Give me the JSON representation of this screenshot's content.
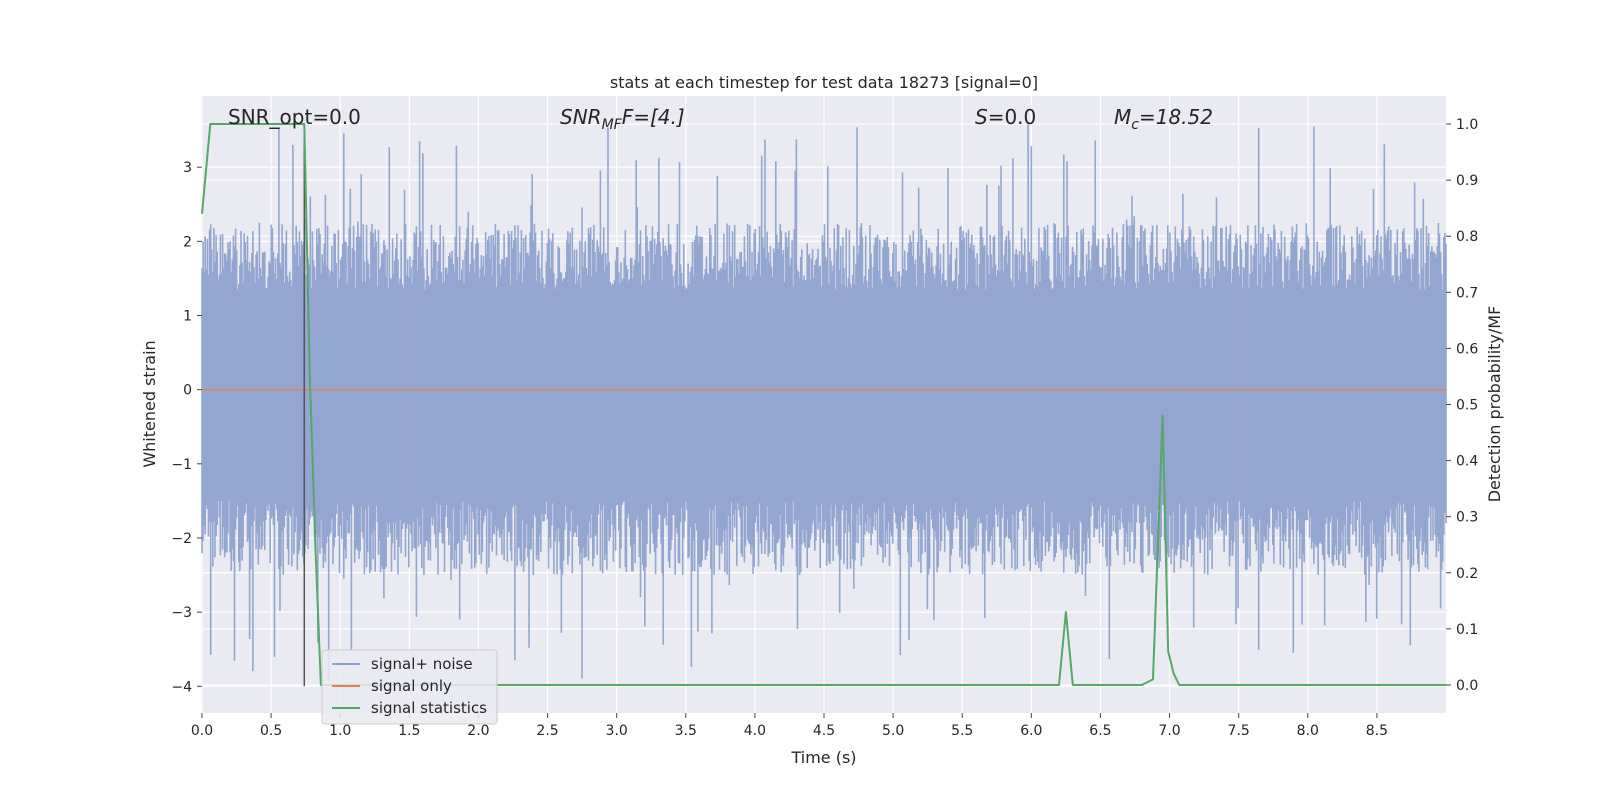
{
  "chart_data": {
    "type": "line",
    "title": "stats at each timestep for test data 18273 [signal=0]",
    "xlabel": "Time (s)",
    "ylabel": "Whitened strain",
    "y2label": "Detection probability/MF",
    "xlim": [
      0.0,
      9.0
    ],
    "ylim": [
      -4.36,
      3.96
    ],
    "y2lim": [
      -0.05,
      1.05
    ],
    "xticks": [
      "0.0",
      "0.5",
      "1.0",
      "1.5",
      "2.0",
      "2.5",
      "3.0",
      "3.5",
      "4.0",
      "4.5",
      "5.0",
      "5.5",
      "6.0",
      "6.5",
      "7.0",
      "7.5",
      "8.0",
      "8.5"
    ],
    "xtick_values": [
      0,
      0.5,
      1,
      1.5,
      2,
      2.5,
      3,
      3.5,
      4,
      4.5,
      5,
      5.5,
      6,
      6.5,
      7,
      7.5,
      8,
      8.5
    ],
    "yticks": [
      "−4",
      "−3",
      "−2",
      "−1",
      "0",
      "1",
      "2",
      "3"
    ],
    "ytick_values": [
      -4,
      -3,
      -2,
      -1,
      0,
      1,
      2,
      3
    ],
    "y2ticks": [
      "0.0",
      "0.1",
      "0.2",
      "0.3",
      "0.4",
      "0.5",
      "0.6",
      "0.7",
      "0.8",
      "0.9",
      "1.0"
    ],
    "y2tick_values": [
      0,
      0.1,
      0.2,
      0.3,
      0.4,
      0.5,
      0.6,
      0.7,
      0.8,
      0.9,
      1.0
    ],
    "grid": true,
    "legend_position": "bottom-left",
    "annotations": [
      {
        "label": "SNR_opt=0.0"
      },
      {
        "label": "SNR",
        "sub": "MF",
        "suffix": "F=[4.]",
        "italic": true
      },
      {
        "label": "S",
        "suffix": "=0.0",
        "italic": true
      },
      {
        "label": "M",
        "sub": "c",
        "suffix": "=18.52",
        "italic": true
      }
    ],
    "vline_x": 0.74,
    "series": [
      {
        "name": "signal+ noise",
        "color": "#8ea2cd",
        "kind": "noise",
        "typical_range": [
          -2.0,
          1.8
        ],
        "extreme_range": [
          -4.0,
          3.6
        ]
      },
      {
        "name": "signal only",
        "color": "#dd8452",
        "x": [
          0.0,
          9.0
        ],
        "y": [
          0.0,
          0.0
        ]
      },
      {
        "name": "signal statistics",
        "color": "#55a868",
        "axis": "right",
        "x": [
          0.0,
          0.06,
          0.1,
          0.2,
          0.3,
          0.5,
          0.7,
          0.74,
          0.78,
          0.82,
          0.86,
          0.9,
          6.15,
          6.2,
          6.25,
          6.3,
          6.35,
          6.8,
          6.88,
          6.95,
          6.99,
          7.03,
          7.07,
          7.12,
          9.0
        ],
        "y": [
          0.84,
          1.0,
          1.0,
          1.0,
          1.0,
          1.0,
          1.0,
          1.0,
          0.55,
          0.25,
          0.0,
          0.0,
          0.0,
          0.0,
          0.13,
          0.0,
          0.0,
          0.0,
          0.01,
          0.48,
          0.06,
          0.02,
          0.0,
          0.0,
          0.0
        ]
      }
    ]
  }
}
